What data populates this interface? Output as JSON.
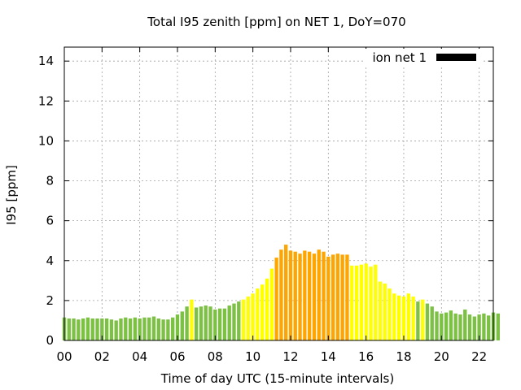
{
  "chart_data": {
    "type": "bar",
    "title": "Total I95 zenith [ppm] on NET 1, DoY=070",
    "xlabel": "Time of day UTC (15-minute intervals)",
    "ylabel": "I95 [ppm]",
    "xlim": [
      0,
      22.75
    ],
    "ylim": [
      0,
      14.7
    ],
    "interval_hours": 0.25,
    "x_ticks": [
      0,
      2,
      4,
      6,
      8,
      10,
      12,
      14,
      16,
      18,
      20,
      22
    ],
    "x_tick_labels": [
      "00",
      "02",
      "04",
      "06",
      "08",
      "10",
      "12",
      "14",
      "16",
      "18",
      "20",
      "22"
    ],
    "y_ticks": [
      0,
      2,
      4,
      6,
      8,
      10,
      12,
      14
    ],
    "y_tick_labels": [
      "0",
      "2",
      "4",
      "6",
      "8",
      "10",
      "12",
      "14"
    ],
    "grid": true,
    "legend": {
      "label": "ion net 1",
      "placement": "top-right",
      "swatch_color": "#000000"
    },
    "color_scale": [
      {
        "max": 2.0,
        "color": "#7cc144"
      },
      {
        "max": 4.0,
        "color": "#ffff00"
      },
      {
        "max": 99,
        "color": "#ffa500"
      }
    ],
    "series": [
      {
        "values": [
          1.15,
          1.1,
          1.1,
          1.05,
          1.1,
          1.15,
          1.1,
          1.1,
          1.1,
          1.1,
          1.05,
          1.0,
          1.1,
          1.15,
          1.1,
          1.15,
          1.1,
          1.15,
          1.15,
          1.2,
          1.1,
          1.05,
          1.05,
          1.15,
          1.3,
          1.45,
          1.7,
          2.05,
          1.65,
          1.7,
          1.75,
          1.7,
          1.55,
          1.6,
          1.6,
          1.75,
          1.85,
          1.95,
          2.05,
          2.2,
          2.35,
          2.6,
          2.8,
          3.1,
          3.6,
          4.15,
          4.55,
          4.8,
          4.5,
          4.45,
          4.35,
          4.5,
          4.45,
          4.35,
          4.55,
          4.45,
          4.2,
          4.3,
          4.35,
          4.3,
          4.3,
          3.75,
          3.75,
          3.8,
          3.85,
          3.7,
          3.8,
          2.95,
          2.85,
          2.6,
          2.35,
          2.25,
          2.2,
          2.35,
          2.2,
          1.95,
          2.05,
          1.85,
          1.7,
          1.45,
          1.35,
          1.4,
          1.5,
          1.35,
          1.3,
          1.55,
          1.3,
          1.2,
          1.3,
          1.35,
          1.25,
          1.4,
          1.35
        ]
      }
    ]
  }
}
